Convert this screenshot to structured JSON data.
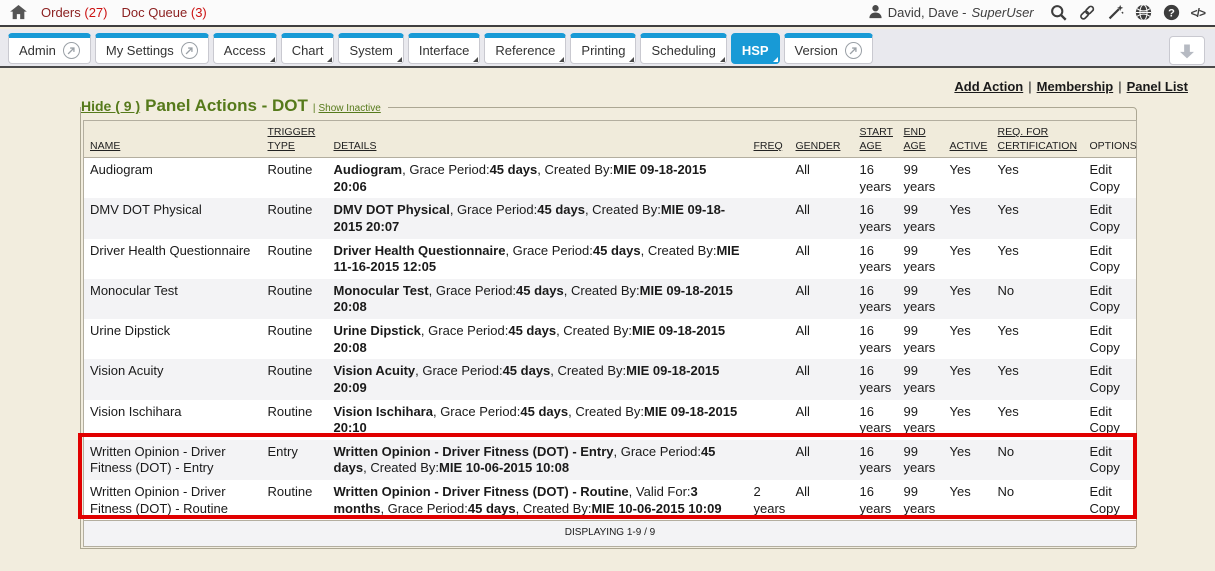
{
  "topbar": {
    "links": [
      {
        "label": "Orders",
        "count": "(27)"
      },
      {
        "label": "Doc Queue",
        "count": "(3)"
      }
    ],
    "user": {
      "name": "David, Dave - ",
      "role": "SuperUser"
    },
    "icons": [
      "search-icon",
      "link-icon",
      "wand-icon",
      "globe-icon",
      "help-icon",
      "code-icon"
    ],
    "code_label": "</>"
  },
  "tabs": {
    "items": [
      {
        "label": "Admin",
        "popout": true,
        "dropdown": false,
        "active": false
      },
      {
        "label": "My Settings",
        "popout": true,
        "dropdown": false,
        "active": false
      },
      {
        "label": "Access",
        "popout": false,
        "dropdown": true,
        "active": false
      },
      {
        "label": "Chart",
        "popout": false,
        "dropdown": true,
        "active": false
      },
      {
        "label": "System",
        "popout": false,
        "dropdown": true,
        "active": false
      },
      {
        "label": "Interface",
        "popout": false,
        "dropdown": true,
        "active": false
      },
      {
        "label": "Reference",
        "popout": false,
        "dropdown": true,
        "active": false
      },
      {
        "label": "Printing",
        "popout": false,
        "dropdown": true,
        "active": false
      },
      {
        "label": "Scheduling",
        "popout": false,
        "dropdown": true,
        "active": false
      },
      {
        "label": "HSP",
        "popout": false,
        "dropdown": true,
        "active": true
      },
      {
        "label": "Version",
        "popout": true,
        "dropdown": false,
        "active": false
      }
    ]
  },
  "actions": {
    "links": [
      "Add Action",
      "Membership",
      "Panel List"
    ],
    "separator": "|"
  },
  "panel": {
    "hide_label": "Hide ( 9 )",
    "title": "Panel Actions - DOT",
    "separator": "|",
    "show_inactive": "Show Inactive"
  },
  "table": {
    "headers": [
      {
        "lines": [
          "NAME"
        ],
        "sortable": true
      },
      {
        "lines": [
          "TRIGGER",
          "TYPE"
        ],
        "sortable": true
      },
      {
        "lines": [
          "DETAILS"
        ],
        "sortable": true
      },
      {
        "lines": [
          "FREQ"
        ],
        "sortable": true
      },
      {
        "lines": [
          "GENDER"
        ],
        "sortable": true
      },
      {
        "lines": [
          "START",
          "AGE"
        ],
        "sortable": true
      },
      {
        "lines": [
          "END",
          "AGE"
        ],
        "sortable": true
      },
      {
        "lines": [
          "ACTIVE"
        ],
        "sortable": true
      },
      {
        "lines": [
          "REQ. FOR",
          "CERTIFICATION"
        ],
        "sortable": true
      },
      {
        "lines": [
          "OPTIONS"
        ],
        "sortable": false
      }
    ],
    "rows": [
      {
        "name": "Audiogram",
        "trigger": "Routine",
        "details": [
          {
            "t": "Audiogram",
            "b": true
          },
          {
            "t": ", Grace Period:",
            "b": false
          },
          {
            "t": "45 days",
            "b": true
          },
          {
            "t": ", Created By:",
            "b": false
          },
          {
            "t": "MIE 09-18-2015 20:06",
            "b": true
          }
        ],
        "freq": "",
        "gender": "All",
        "start_age": "16 years",
        "end_age": "99 years",
        "active": "Yes",
        "req_cert": "Yes",
        "options": [
          "Edit",
          "Copy"
        ],
        "highlight": false
      },
      {
        "name": "DMV DOT Physical",
        "trigger": "Routine",
        "details": [
          {
            "t": "DMV DOT Physical",
            "b": true
          },
          {
            "t": ", Grace Period:",
            "b": false
          },
          {
            "t": "45 days",
            "b": true
          },
          {
            "t": ", Created By:",
            "b": false
          },
          {
            "t": "MIE 09-18-2015 20:07",
            "b": true
          }
        ],
        "freq": "",
        "gender": "All",
        "start_age": "16 years",
        "end_age": "99 years",
        "active": "Yes",
        "req_cert": "Yes",
        "options": [
          "Edit",
          "Copy"
        ],
        "highlight": false
      },
      {
        "name": "Driver Health Questionnaire",
        "trigger": "Routine",
        "details": [
          {
            "t": "Driver Health Questionnaire",
            "b": true
          },
          {
            "t": ", Grace Period:",
            "b": false
          },
          {
            "t": "45 days",
            "b": true
          },
          {
            "t": ", Created By:",
            "b": false
          },
          {
            "t": "MIE 11-16-2015 12:05",
            "b": true
          }
        ],
        "freq": "",
        "gender": "All",
        "start_age": "16 years",
        "end_age": "99 years",
        "active": "Yes",
        "req_cert": "Yes",
        "options": [
          "Edit",
          "Copy"
        ],
        "highlight": false
      },
      {
        "name": "Monocular Test",
        "trigger": "Routine",
        "details": [
          {
            "t": "Monocular Test",
            "b": true
          },
          {
            "t": ", Grace Period:",
            "b": false
          },
          {
            "t": "45 days",
            "b": true
          },
          {
            "t": ", Created By:",
            "b": false
          },
          {
            "t": "MIE 09-18-2015 20:08",
            "b": true
          }
        ],
        "freq": "",
        "gender": "All",
        "start_age": "16 years",
        "end_age": "99 years",
        "active": "Yes",
        "req_cert": "No",
        "options": [
          "Edit",
          "Copy"
        ],
        "highlight": false
      },
      {
        "name": "Urine Dipstick",
        "trigger": "Routine",
        "details": [
          {
            "t": "Urine Dipstick",
            "b": true
          },
          {
            "t": ", Grace Period:",
            "b": false
          },
          {
            "t": "45 days",
            "b": true
          },
          {
            "t": ", Created By:",
            "b": false
          },
          {
            "t": "MIE 09-18-2015 20:08",
            "b": true
          }
        ],
        "freq": "",
        "gender": "All",
        "start_age": "16 years",
        "end_age": "99 years",
        "active": "Yes",
        "req_cert": "Yes",
        "options": [
          "Edit",
          "Copy"
        ],
        "highlight": false
      },
      {
        "name": "Vision Acuity",
        "trigger": "Routine",
        "details": [
          {
            "t": "Vision Acuity",
            "b": true
          },
          {
            "t": ", Grace Period:",
            "b": false
          },
          {
            "t": "45 days",
            "b": true
          },
          {
            "t": ", Created By:",
            "b": false
          },
          {
            "t": "MIE 09-18-2015 20:09",
            "b": true
          }
        ],
        "freq": "",
        "gender": "All",
        "start_age": "16 years",
        "end_age": "99 years",
        "active": "Yes",
        "req_cert": "Yes",
        "options": [
          "Edit",
          "Copy"
        ],
        "highlight": false
      },
      {
        "name": "Vision Ischihara",
        "trigger": "Routine",
        "details": [
          {
            "t": "Vision Ischihara",
            "b": true
          },
          {
            "t": ", Grace Period:",
            "b": false
          },
          {
            "t": "45 days",
            "b": true
          },
          {
            "t": ", Created By:",
            "b": false
          },
          {
            "t": "MIE 09-18-2015 20:10",
            "b": true
          }
        ],
        "freq": "",
        "gender": "All",
        "start_age": "16 years",
        "end_age": "99 years",
        "active": "Yes",
        "req_cert": "Yes",
        "options": [
          "Edit",
          "Copy"
        ],
        "highlight": false
      },
      {
        "name": "Written Opinion - Driver Fitness (DOT) - Entry",
        "trigger": "Entry",
        "details": [
          {
            "t": "Written Opinion - Driver Fitness (DOT) - Entry",
            "b": true
          },
          {
            "t": ", Grace Period:",
            "b": false
          },
          {
            "t": "45 days",
            "b": true
          },
          {
            "t": ", Created By:",
            "b": false
          },
          {
            "t": "MIE 10-06-2015 10:08",
            "b": true
          }
        ],
        "freq": "",
        "gender": "All",
        "start_age": "16 years",
        "end_age": "99 years",
        "active": "Yes",
        "req_cert": "No",
        "options": [
          "Edit",
          "Copy"
        ],
        "highlight": true
      },
      {
        "name": "Written Opinion - Driver Fitness (DOT) - Routine",
        "trigger": "Routine",
        "details": [
          {
            "t": "Written Opinion - Driver Fitness (DOT) - Routine",
            "b": true
          },
          {
            "t": ", Valid For:",
            "b": false
          },
          {
            "t": "3 months",
            "b": true
          },
          {
            "t": ", Grace Period:",
            "b": false
          },
          {
            "t": "45 days",
            "b": true
          },
          {
            "t": ", Created By:",
            "b": false
          },
          {
            "t": "MIE 10-06-2015 10:09",
            "b": true
          }
        ],
        "freq": "2 years",
        "gender": "All",
        "start_age": "16 years",
        "end_age": "99 years",
        "active": "Yes",
        "req_cert": "No",
        "options": [
          "Edit",
          "Copy"
        ],
        "highlight": true
      }
    ],
    "footer": "DISPLAYING 1-9 / 9"
  },
  "colors": {
    "tab_blue": "#189ad6",
    "link_green": "#567a1b",
    "annotation_red": "#e10000",
    "orders_maroon": "#8b1f1f",
    "count_red": "#cc1111",
    "page_beige": "#f2edde"
  }
}
